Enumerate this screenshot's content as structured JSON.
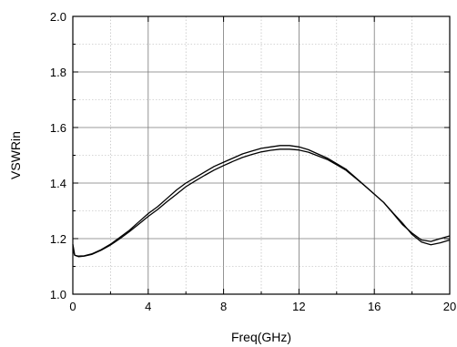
{
  "chart_data": {
    "type": "line",
    "title": "",
    "xlabel": "Freq(GHz)",
    "ylabel": "VSWRin",
    "xlim": [
      0,
      20
    ],
    "ylim": [
      1.0,
      2.0
    ],
    "x_ticks": [
      0,
      4,
      8,
      12,
      16,
      20
    ],
    "x_tick_labels": [
      "0",
      "4",
      "8",
      "12",
      "16",
      "20"
    ],
    "y_ticks": [
      1.0,
      1.2,
      1.4,
      1.6,
      1.8,
      2.0
    ],
    "y_tick_labels": [
      "1.0",
      "1.2",
      "1.4",
      "1.6",
      "1.8",
      "2.0"
    ],
    "grid": true,
    "grid_style": "dotted",
    "legend": "none",
    "line_color": "#000000",
    "series": [
      {
        "x": [
          0,
          0.1,
          0.3,
          0.6,
          1,
          1.5,
          2,
          2.5,
          3,
          3.5,
          4,
          4.5,
          5,
          5.5,
          6,
          6.5,
          7,
          7.5,
          8,
          8.5,
          9,
          9.5,
          10,
          10.5,
          11,
          11.5,
          12,
          12.5,
          13,
          13.5,
          14,
          14.5,
          15,
          15.5,
          16,
          16.5,
          17,
          17.5,
          18,
          18.5,
          19,
          19.5,
          20
        ],
        "y": [
          1.16,
          1.14,
          1.137,
          1.138,
          1.145,
          1.16,
          1.18,
          1.205,
          1.23,
          1.26,
          1.29,
          1.315,
          1.345,
          1.375,
          1.4,
          1.42,
          1.44,
          1.46,
          1.475,
          1.49,
          1.505,
          1.515,
          1.525,
          1.53,
          1.535,
          1.535,
          1.53,
          1.52,
          1.505,
          1.49,
          1.47,
          1.45,
          1.42,
          1.39,
          1.36,
          1.33,
          1.29,
          1.25,
          1.22,
          1.195,
          1.19,
          1.2,
          1.21
        ]
      },
      {
        "x": [
          0,
          0.1,
          0.3,
          0.6,
          1,
          1.5,
          2,
          2.5,
          3,
          3.5,
          4,
          4.5,
          5,
          5.5,
          6,
          6.5,
          7,
          7.5,
          8,
          8.5,
          9,
          9.5,
          10,
          10.5,
          11,
          11.5,
          12,
          12.5,
          13,
          13.5,
          14,
          14.5,
          15,
          15.5,
          16,
          16.5,
          17,
          17.5,
          18,
          18.5,
          19,
          19.5,
          20
        ],
        "y": [
          1.18,
          1.14,
          1.135,
          1.137,
          1.143,
          1.158,
          1.177,
          1.2,
          1.225,
          1.252,
          1.28,
          1.305,
          1.333,
          1.36,
          1.387,
          1.408,
          1.428,
          1.447,
          1.463,
          1.478,
          1.492,
          1.503,
          1.512,
          1.518,
          1.522,
          1.522,
          1.519,
          1.511,
          1.498,
          1.485,
          1.466,
          1.446,
          1.418,
          1.39,
          1.36,
          1.33,
          1.292,
          1.255,
          1.215,
          1.188,
          1.178,
          1.185,
          1.195
        ]
      }
    ]
  }
}
